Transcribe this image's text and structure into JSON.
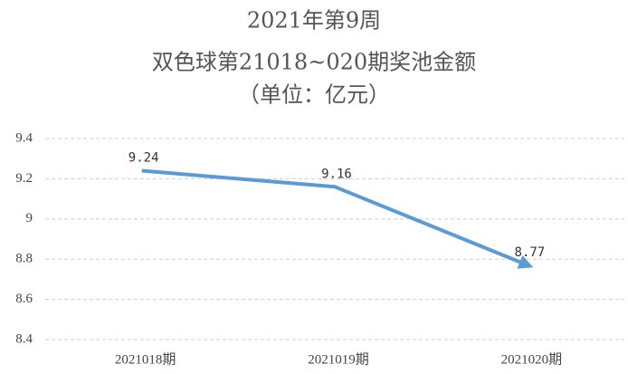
{
  "chart_data": {
    "type": "line",
    "title": "2021年第9周",
    "subtitle": "双色球第21018~020期奖池金额",
    "annotation": "（单位：亿元）",
    "categories": [
      "2021018期",
      "2021019期",
      "2021020期"
    ],
    "series": [
      {
        "name": "奖池金额",
        "color": "#5b9bd5",
        "values": [
          9.24,
          9.16,
          8.77
        ]
      }
    ],
    "ylim": [
      8.4,
      9.4
    ],
    "yticks": [
      8.4,
      8.6,
      8.8,
      9,
      9.2,
      9.4
    ],
    "grid": true
  }
}
